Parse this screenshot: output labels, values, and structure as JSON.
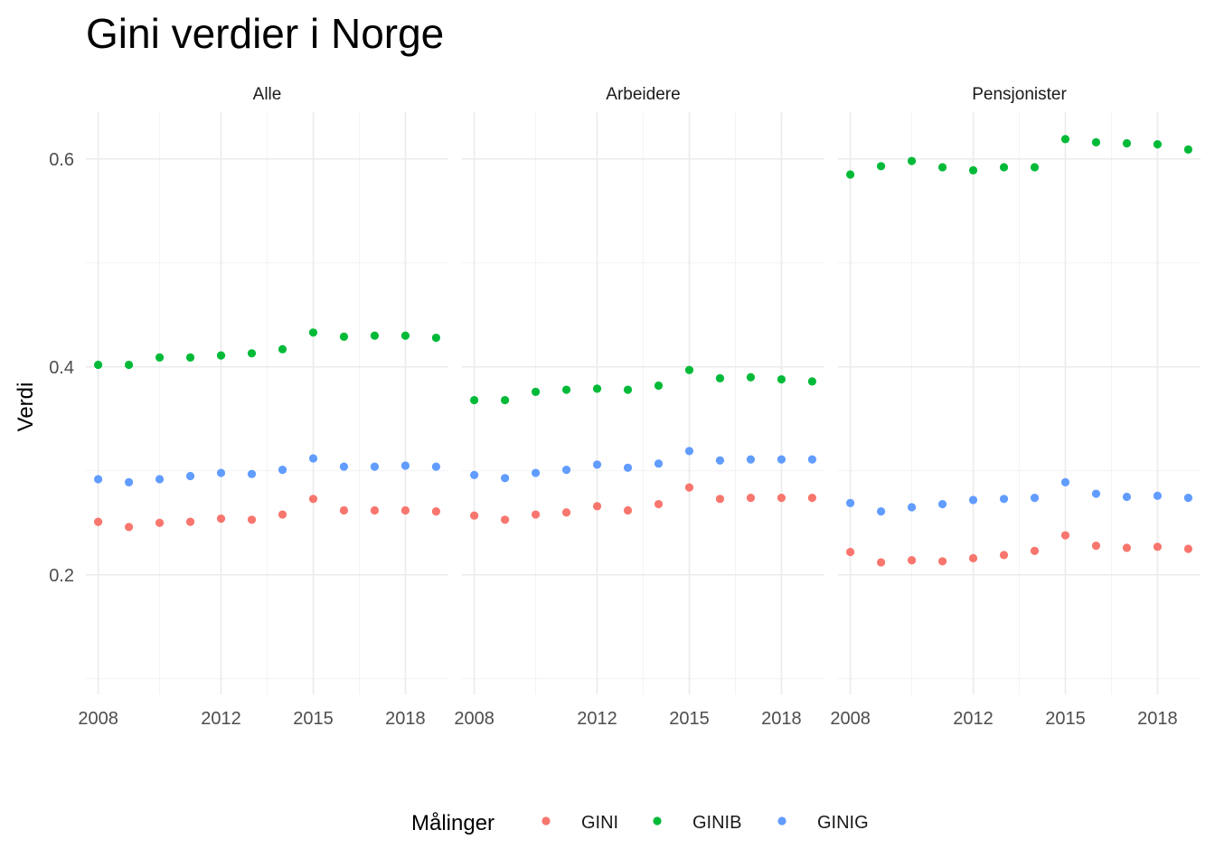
{
  "chart_data": {
    "type": "scatter",
    "title": "Gini verdier i Norge",
    "ylabel": "Verdi",
    "xlabel": "",
    "ylim": [
      0.085,
      0.645
    ],
    "xlim": [
      2007.6,
      2019.4
    ],
    "y_ticks": [
      0.2,
      0.4,
      0.6
    ],
    "x_ticks": [
      2008,
      2012,
      2015,
      2018
    ],
    "grid": true,
    "legend": {
      "title": "Målinger",
      "position": "bottom",
      "entries": [
        {
          "name": "GINI",
          "color": "#F8766D"
        },
        {
          "name": "GINIB",
          "color": "#00BA38"
        },
        {
          "name": "GINIG",
          "color": "#619CFF"
        }
      ]
    },
    "x": [
      2008,
      2009,
      2010,
      2011,
      2012,
      2013,
      2014,
      2015,
      2016,
      2017,
      2018,
      2019
    ],
    "panels": [
      {
        "label": "Alle",
        "series": [
          {
            "name": "GINI",
            "values": [
              0.251,
              0.246,
              0.25,
              0.251,
              0.254,
              0.253,
              0.258,
              0.273,
              0.262,
              0.262,
              0.262,
              0.261
            ]
          },
          {
            "name": "GINIB",
            "values": [
              0.402,
              0.402,
              0.409,
              0.409,
              0.411,
              0.413,
              0.417,
              0.433,
              0.429,
              0.43,
              0.43,
              0.428
            ]
          },
          {
            "name": "GINIG",
            "values": [
              0.292,
              0.289,
              0.292,
              0.295,
              0.298,
              0.297,
              0.301,
              0.312,
              0.304,
              0.304,
              0.305,
              0.304
            ]
          }
        ]
      },
      {
        "label": "Arbeidere",
        "series": [
          {
            "name": "GINI",
            "values": [
              0.257,
              0.253,
              0.258,
              0.26,
              0.266,
              0.262,
              0.268,
              0.284,
              0.273,
              0.274,
              0.274,
              0.274
            ]
          },
          {
            "name": "GINIB",
            "values": [
              0.368,
              0.368,
              0.376,
              0.378,
              0.379,
              0.378,
              0.382,
              0.397,
              0.389,
              0.39,
              0.388,
              0.386
            ]
          },
          {
            "name": "GINIG",
            "values": [
              0.296,
              0.293,
              0.298,
              0.301,
              0.306,
              0.303,
              0.307,
              0.319,
              0.31,
              0.311,
              0.311,
              0.311
            ]
          }
        ]
      },
      {
        "label": "Pensjonister",
        "series": [
          {
            "name": "GINI",
            "values": [
              0.222,
              0.212,
              0.214,
              0.213,
              0.216,
              0.219,
              0.223,
              0.238,
              0.228,
              0.226,
              0.227,
              0.225
            ]
          },
          {
            "name": "GINIB",
            "values": [
              0.585,
              0.593,
              0.598,
              0.592,
              0.589,
              0.592,
              0.592,
              0.619,
              0.616,
              0.615,
              0.614,
              0.609
            ]
          },
          {
            "name": "GINIG",
            "values": [
              0.269,
              0.261,
              0.265,
              0.268,
              0.272,
              0.273,
              0.274,
              0.289,
              0.278,
              0.275,
              0.276,
              0.274
            ]
          }
        ]
      }
    ]
  }
}
